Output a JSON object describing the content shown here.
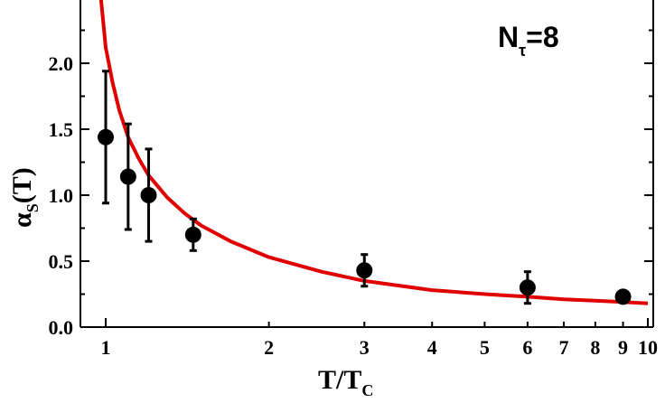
{
  "chart_data": {
    "type": "scatter",
    "xscale": "log",
    "xlim": [
      0.9,
      10
    ],
    "ylim": [
      0.0,
      2.5
    ],
    "grid": false,
    "xlabel": {
      "main": "T/T",
      "sub": "C"
    },
    "ylabel": {
      "main": "α",
      "sub": "S",
      "rest": "(T)"
    },
    "annotation": {
      "main": "N",
      "sub": "τ",
      "rest": "=8"
    },
    "x_ticks": [
      1,
      2,
      3,
      4,
      5,
      6,
      7,
      8,
      9,
      10
    ],
    "y_ticks": [
      0.0,
      0.5,
      1.0,
      1.5,
      2.0
    ],
    "y_tick_labels": [
      "0.0",
      "0.5",
      "1.0",
      "1.5",
      "2.0"
    ],
    "points": [
      {
        "x": 1.0,
        "y": 1.44,
        "err": 0.5
      },
      {
        "x": 1.1,
        "y": 1.14,
        "err": 0.4
      },
      {
        "x": 1.2,
        "y": 1.0,
        "err": 0.35
      },
      {
        "x": 1.45,
        "y": 0.7,
        "err": 0.12
      },
      {
        "x": 3.0,
        "y": 0.43,
        "err": 0.12
      },
      {
        "x": 6.0,
        "y": 0.3,
        "err": 0.12
      },
      {
        "x": 9.0,
        "y": 0.23,
        "err": 0.04
      }
    ],
    "fit_curve": {
      "x": [
        0.98,
        1.0,
        1.03,
        1.06,
        1.1,
        1.15,
        1.2,
        1.3,
        1.4,
        1.5,
        1.7,
        2.0,
        2.5,
        3.0,
        4.0,
        5.0,
        6.0,
        7.0,
        8.0,
        9.0,
        10.0
      ],
      "y": [
        2.5,
        2.12,
        1.85,
        1.64,
        1.44,
        1.28,
        1.15,
        0.98,
        0.86,
        0.77,
        0.65,
        0.53,
        0.42,
        0.35,
        0.28,
        0.25,
        0.23,
        0.21,
        0.2,
        0.19,
        0.18
      ],
      "color": "#e00000"
    },
    "marker_color": "#000000"
  }
}
